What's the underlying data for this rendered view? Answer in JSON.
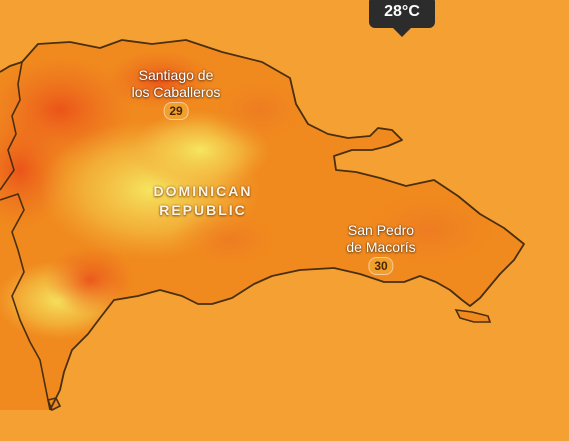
{
  "map": {
    "country_label": "DOMINICAN\nREPUBLIC",
    "cursor_tooltip": {
      "value": "28°C"
    },
    "cities": [
      {
        "name": "Santiago de\nlos Caballeros",
        "temperature": "29"
      },
      {
        "name": "San Pedro\nde Macorís",
        "temperature": "30"
      }
    ],
    "colors": {
      "ocean": "#f5a033",
      "land_base": "#f08a1e",
      "hot_spot": "#ec5a1c",
      "cool_spot": "#f3e05a",
      "border": "#4a2f0e",
      "tooltip_background": "#2c2c2c"
    }
  }
}
